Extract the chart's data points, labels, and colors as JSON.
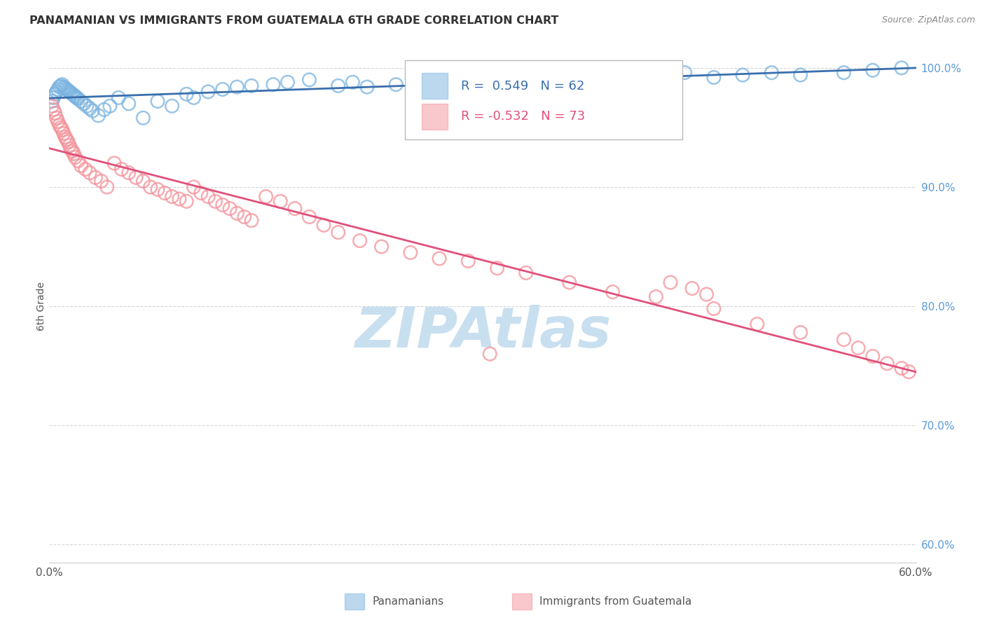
{
  "title": "PANAMANIAN VS IMMIGRANTS FROM GUATEMALA 6TH GRADE CORRELATION CHART",
  "source": "Source: ZipAtlas.com",
  "ylabel": "6th Grade",
  "xlim": [
    0.0,
    0.6
  ],
  "ylim": [
    0.585,
    1.015
  ],
  "yticks_right": [
    0.6,
    0.7,
    0.8,
    0.9,
    1.0
  ],
  "yticklabels_right": [
    "60.0%",
    "70.0%",
    "80.0%",
    "90.0%",
    "100.0%"
  ],
  "blue_label": "Panamanians",
  "pink_label": "Immigrants from Guatemala",
  "blue_R": "0.549",
  "blue_N": "62",
  "pink_R": "-0.532",
  "pink_N": "73",
  "blue_color": "#7ab3e0",
  "pink_color": "#f4929a",
  "blue_line_color": "#3a6fad",
  "pink_line_color": "#e0507a",
  "grid_color": "#cccccc",
  "watermark": "ZIPAtlas",
  "watermark_color": "#c8dff0",
  "blue_x": [
    0.002,
    0.003,
    0.004,
    0.005,
    0.006,
    0.007,
    0.008,
    0.009,
    0.01,
    0.011,
    0.012,
    0.013,
    0.014,
    0.015,
    0.016,
    0.017,
    0.018,
    0.019,
    0.02,
    0.022,
    0.024,
    0.026,
    0.028,
    0.03,
    0.034,
    0.038,
    0.042,
    0.048,
    0.055,
    0.065,
    0.075,
    0.085,
    0.095,
    0.1,
    0.11,
    0.12,
    0.13,
    0.14,
    0.155,
    0.165,
    0.18,
    0.2,
    0.21,
    0.22,
    0.24,
    0.26,
    0.28,
    0.3,
    0.32,
    0.34,
    0.36,
    0.38,
    0.4,
    0.42,
    0.44,
    0.46,
    0.48,
    0.5,
    0.52,
    0.55,
    0.57,
    0.59
  ],
  "blue_y": [
    0.972,
    0.975,
    0.978,
    0.98,
    0.982,
    0.984,
    0.985,
    0.986,
    0.984,
    0.983,
    0.982,
    0.981,
    0.98,
    0.979,
    0.978,
    0.977,
    0.976,
    0.975,
    0.974,
    0.972,
    0.97,
    0.968,
    0.966,
    0.964,
    0.96,
    0.965,
    0.968,
    0.975,
    0.97,
    0.958,
    0.972,
    0.968,
    0.978,
    0.975,
    0.98,
    0.982,
    0.984,
    0.985,
    0.986,
    0.988,
    0.99,
    0.985,
    0.988,
    0.984,
    0.986,
    0.988,
    0.984,
    0.986,
    0.99,
    0.992,
    0.988,
    0.99,
    0.992,
    0.994,
    0.996,
    0.992,
    0.994,
    0.996,
    0.994,
    0.996,
    0.998,
    1.0
  ],
  "pink_x": [
    0.002,
    0.003,
    0.004,
    0.005,
    0.006,
    0.007,
    0.008,
    0.009,
    0.01,
    0.011,
    0.012,
    0.013,
    0.014,
    0.015,
    0.016,
    0.017,
    0.018,
    0.02,
    0.022,
    0.025,
    0.028,
    0.032,
    0.036,
    0.04,
    0.045,
    0.05,
    0.055,
    0.06,
    0.065,
    0.07,
    0.075,
    0.08,
    0.085,
    0.09,
    0.095,
    0.1,
    0.105,
    0.11,
    0.115,
    0.12,
    0.125,
    0.13,
    0.135,
    0.14,
    0.15,
    0.16,
    0.17,
    0.18,
    0.19,
    0.2,
    0.215,
    0.23,
    0.25,
    0.27,
    0.29,
    0.31,
    0.33,
    0.36,
    0.39,
    0.42,
    0.46,
    0.49,
    0.52,
    0.55,
    0.56,
    0.57,
    0.58,
    0.59,
    0.595,
    0.43,
    0.445,
    0.455,
    0.305
  ],
  "pink_y": [
    0.968,
    0.965,
    0.962,
    0.958,
    0.955,
    0.952,
    0.95,
    0.948,
    0.945,
    0.942,
    0.94,
    0.938,
    0.935,
    0.932,
    0.93,
    0.928,
    0.925,
    0.922,
    0.918,
    0.915,
    0.912,
    0.908,
    0.905,
    0.9,
    0.92,
    0.915,
    0.912,
    0.908,
    0.905,
    0.9,
    0.898,
    0.895,
    0.892,
    0.89,
    0.888,
    0.9,
    0.895,
    0.892,
    0.888,
    0.885,
    0.882,
    0.878,
    0.875,
    0.872,
    0.892,
    0.888,
    0.882,
    0.875,
    0.868,
    0.862,
    0.855,
    0.85,
    0.845,
    0.84,
    0.838,
    0.832,
    0.828,
    0.82,
    0.812,
    0.808,
    0.798,
    0.785,
    0.778,
    0.772,
    0.765,
    0.758,
    0.752,
    0.748,
    0.745,
    0.82,
    0.815,
    0.81,
    0.76
  ]
}
